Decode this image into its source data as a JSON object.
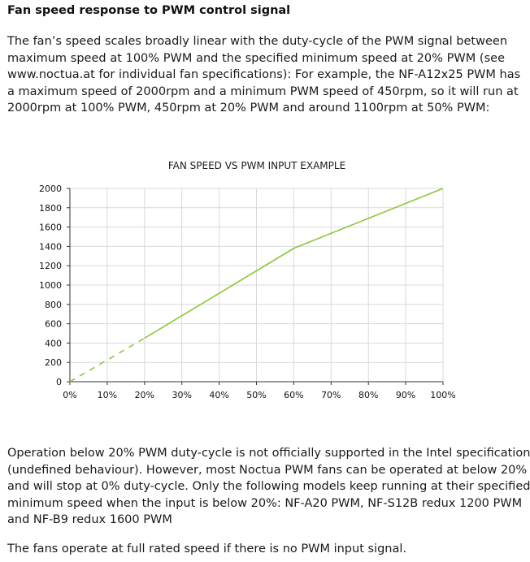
{
  "heading": "Fan speed response to PWM control signal",
  "paragraph1_lines": [
    "The fan’s speed scales broadly linear with the duty-cycle of the PWM signal between",
    "maximum speed at 100% PWM and the specified minimum speed at 20% PWM (see",
    "www.noctua.at for individual fan specifications): For example, the NF-A12x25 PWM has",
    "a maximum speed of 2000rpm and a minimum PWM speed of 450rpm, so it will run at",
    "2000rpm at 100% PWM, 450rpm at 20% PWM and around 1100rpm at 50% PWM:"
  ],
  "paragraph2_lines": [
    "Operation below 20% PWM duty-cycle is not officially supported in the Intel specification",
    "(undefined behaviour). However, most Noctua PWM fans can be operated at below 20%",
    "and will stop at 0% duty-cycle. Only the following models keep running at their specified",
    "minimum speed when the input is below 20%: NF-A20 PWM, NF-S12B redux 1200 PWM",
    "and NF-B9 redux 1600 PWM"
  ],
  "paragraph3": "The fans operate at full rated speed if there is no PWM input signal.",
  "chart_data": {
    "type": "line",
    "title": "FAN SPEED VS PWM INPUT EXAMPLE",
    "xlabel": "",
    "ylabel": "",
    "x_tick_labels": [
      "0%",
      "10%",
      "20%",
      "30%",
      "40%",
      "50%",
      "60%",
      "70%",
      "80%",
      "90%",
      "100%"
    ],
    "y_tick_labels": [
      "0",
      "200",
      "400",
      "600",
      "800",
      "1000",
      "1200",
      "1400",
      "1600",
      "1800",
      "2000"
    ],
    "xlim": [
      0,
      100
    ],
    "ylim": [
      0,
      2000
    ],
    "grid": true,
    "series": [
      {
        "style": "dashed",
        "x": [
          0,
          20
        ],
        "y": [
          0,
          450
        ]
      },
      {
        "style": "solid",
        "x": [
          20,
          60,
          100
        ],
        "y": [
          450,
          1380,
          2000
        ]
      }
    ],
    "line_color": "#8dc63f",
    "grid_color": "#d9d9d9",
    "axis_color": "#333333"
  }
}
